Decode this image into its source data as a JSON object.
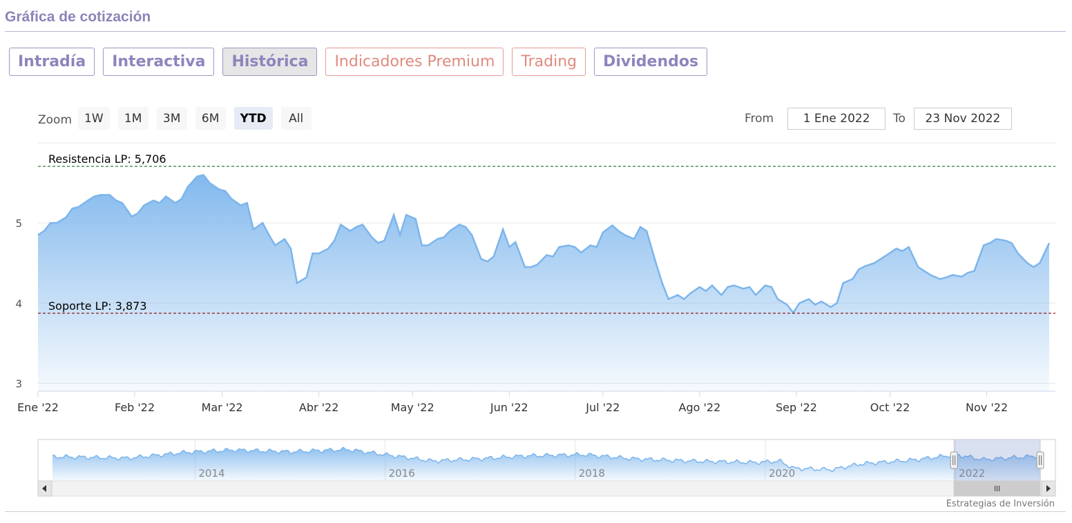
{
  "section_title": "Gráfica de cotización",
  "tabs": [
    {
      "label": "Intradía",
      "style": "purple"
    },
    {
      "label": "Interactiva",
      "style": "purple"
    },
    {
      "label": "Histórica",
      "style": "purple",
      "active": true
    },
    {
      "label": "Indicadores Premium",
      "style": "salmon"
    },
    {
      "label": "Trading",
      "style": "salmon"
    },
    {
      "label": "Dividendos",
      "style": "purple"
    }
  ],
  "zoom": {
    "label": "Zoom",
    "buttons": [
      "1W",
      "1M",
      "3M",
      "6M",
      "YTD",
      "All"
    ],
    "selected": "YTD"
  },
  "range": {
    "from_label": "From",
    "from_value": "1 Ene 2022",
    "to_label": "To",
    "to_value": "23 Nov 2022"
  },
  "credit": "Estrategias de Inversión",
  "colors": {
    "series_line": "#7cb5ec",
    "resistance": "#2e7d32",
    "support": "#8b1a1a",
    "tab_purple": "#8e85bd",
    "tab_salmon": "#e08a7e"
  },
  "chart_data": {
    "type": "area",
    "title": "",
    "xlabel": "",
    "ylabel": "",
    "x_range": [
      "2022-01-01",
      "2022-11-23"
    ],
    "ylim": [
      2.9,
      6.0
    ],
    "y_ticks": [
      3,
      4,
      5
    ],
    "x_ticks": [
      {
        "date": "2022-01-01",
        "label": "Ene '22"
      },
      {
        "date": "2022-02-01",
        "label": "Feb '22"
      },
      {
        "date": "2022-03-01",
        "label": "Mar '22"
      },
      {
        "date": "2022-04-01",
        "label": "Abr '22"
      },
      {
        "date": "2022-05-01",
        "label": "May '22"
      },
      {
        "date": "2022-06-01",
        "label": "Jun '22"
      },
      {
        "date": "2022-07-01",
        "label": "Jul '22"
      },
      {
        "date": "2022-08-01",
        "label": "Ago '22"
      },
      {
        "date": "2022-09-01",
        "label": "Sep '22"
      },
      {
        "date": "2022-10-01",
        "label": "Oct '22"
      },
      {
        "date": "2022-11-01",
        "label": "Nov '22"
      }
    ],
    "grid": true,
    "legend": "none",
    "reference_lines": [
      {
        "label": "Resistencia LP: 5,706",
        "value": 5.706,
        "style": "dashed",
        "color": "#2e7d32"
      },
      {
        "label": "Soporte LP: 3,873",
        "value": 3.873,
        "style": "dashed",
        "color": "#8b1a1a"
      }
    ],
    "series": [
      {
        "points": [
          [
            "2022-01-01",
            4.85
          ],
          [
            "2022-01-03",
            4.9
          ],
          [
            "2022-01-05",
            5.0
          ],
          [
            "2022-01-07",
            5.0
          ],
          [
            "2022-01-10",
            5.07
          ],
          [
            "2022-01-12",
            5.18
          ],
          [
            "2022-01-14",
            5.2
          ],
          [
            "2022-01-17",
            5.28
          ],
          [
            "2022-01-19",
            5.33
          ],
          [
            "2022-01-21",
            5.35
          ],
          [
            "2022-01-24",
            5.35
          ],
          [
            "2022-01-26",
            5.28
          ],
          [
            "2022-01-28",
            5.25
          ],
          [
            "2022-01-31",
            5.08
          ],
          [
            "2022-02-02",
            5.12
          ],
          [
            "2022-02-04",
            5.22
          ],
          [
            "2022-02-07",
            5.28
          ],
          [
            "2022-02-09",
            5.25
          ],
          [
            "2022-02-11",
            5.33
          ],
          [
            "2022-02-14",
            5.25
          ],
          [
            "2022-02-16",
            5.3
          ],
          [
            "2022-02-18",
            5.45
          ],
          [
            "2022-02-21",
            5.58
          ],
          [
            "2022-02-23",
            5.6
          ],
          [
            "2022-02-25",
            5.5
          ],
          [
            "2022-02-28",
            5.42
          ],
          [
            "2022-03-02",
            5.4
          ],
          [
            "2022-03-04",
            5.3
          ],
          [
            "2022-03-07",
            5.22
          ],
          [
            "2022-03-09",
            5.25
          ],
          [
            "2022-03-11",
            4.92
          ],
          [
            "2022-03-14",
            5.0
          ],
          [
            "2022-03-16",
            4.85
          ],
          [
            "2022-03-18",
            4.72
          ],
          [
            "2022-03-21",
            4.8
          ],
          [
            "2022-03-23",
            4.68
          ],
          [
            "2022-03-25",
            4.25
          ],
          [
            "2022-03-28",
            4.32
          ],
          [
            "2022-03-30",
            4.62
          ],
          [
            "2022-04-01",
            4.62
          ],
          [
            "2022-04-04",
            4.68
          ],
          [
            "2022-04-06",
            4.78
          ],
          [
            "2022-04-08",
            4.98
          ],
          [
            "2022-04-11",
            4.9
          ],
          [
            "2022-04-13",
            4.95
          ],
          [
            "2022-04-15",
            4.98
          ],
          [
            "2022-04-18",
            4.82
          ],
          [
            "2022-04-20",
            4.75
          ],
          [
            "2022-04-22",
            4.78
          ],
          [
            "2022-04-25",
            5.1
          ],
          [
            "2022-04-27",
            4.85
          ],
          [
            "2022-04-29",
            5.1
          ],
          [
            "2022-05-02",
            5.05
          ],
          [
            "2022-05-04",
            4.72
          ],
          [
            "2022-05-06",
            4.72
          ],
          [
            "2022-05-09",
            4.8
          ],
          [
            "2022-05-11",
            4.82
          ],
          [
            "2022-05-13",
            4.9
          ],
          [
            "2022-05-16",
            4.98
          ],
          [
            "2022-05-18",
            4.95
          ],
          [
            "2022-05-20",
            4.85
          ],
          [
            "2022-05-23",
            4.55
          ],
          [
            "2022-05-25",
            4.52
          ],
          [
            "2022-05-27",
            4.58
          ],
          [
            "2022-05-30",
            4.92
          ],
          [
            "2022-06-01",
            4.7
          ],
          [
            "2022-06-03",
            4.76
          ],
          [
            "2022-06-06",
            4.45
          ],
          [
            "2022-06-08",
            4.45
          ],
          [
            "2022-06-10",
            4.48
          ],
          [
            "2022-06-13",
            4.6
          ],
          [
            "2022-06-15",
            4.58
          ],
          [
            "2022-06-17",
            4.7
          ],
          [
            "2022-06-20",
            4.72
          ],
          [
            "2022-06-22",
            4.7
          ],
          [
            "2022-06-24",
            4.63
          ],
          [
            "2022-06-27",
            4.72
          ],
          [
            "2022-06-29",
            4.7
          ],
          [
            "2022-07-01",
            4.88
          ],
          [
            "2022-07-04",
            4.97
          ],
          [
            "2022-07-06",
            4.9
          ],
          [
            "2022-07-08",
            4.85
          ],
          [
            "2022-07-11",
            4.8
          ],
          [
            "2022-07-13",
            4.95
          ],
          [
            "2022-07-15",
            4.9
          ],
          [
            "2022-07-18",
            4.5
          ],
          [
            "2022-07-20",
            4.25
          ],
          [
            "2022-07-22",
            4.05
          ],
          [
            "2022-07-25",
            4.1
          ],
          [
            "2022-07-27",
            4.05
          ],
          [
            "2022-07-29",
            4.12
          ],
          [
            "2022-08-01",
            4.2
          ],
          [
            "2022-08-03",
            4.15
          ],
          [
            "2022-08-05",
            4.22
          ],
          [
            "2022-08-08",
            4.1
          ],
          [
            "2022-08-10",
            4.2
          ],
          [
            "2022-08-12",
            4.22
          ],
          [
            "2022-08-15",
            4.18
          ],
          [
            "2022-08-17",
            4.2
          ],
          [
            "2022-08-19",
            4.1
          ],
          [
            "2022-08-22",
            4.22
          ],
          [
            "2022-08-24",
            4.2
          ],
          [
            "2022-08-26",
            4.05
          ],
          [
            "2022-08-29",
            3.98
          ],
          [
            "2022-08-31",
            3.88
          ],
          [
            "2022-09-02",
            4.0
          ],
          [
            "2022-09-05",
            4.05
          ],
          [
            "2022-09-07",
            3.98
          ],
          [
            "2022-09-09",
            4.02
          ],
          [
            "2022-09-12",
            3.95
          ],
          [
            "2022-09-14",
            4.0
          ],
          [
            "2022-09-16",
            4.25
          ],
          [
            "2022-09-19",
            4.3
          ],
          [
            "2022-09-21",
            4.42
          ],
          [
            "2022-09-23",
            4.46
          ],
          [
            "2022-09-26",
            4.5
          ],
          [
            "2022-09-28",
            4.55
          ],
          [
            "2022-09-30",
            4.6
          ],
          [
            "2022-10-03",
            4.68
          ],
          [
            "2022-10-05",
            4.65
          ],
          [
            "2022-10-07",
            4.7
          ],
          [
            "2022-10-10",
            4.45
          ],
          [
            "2022-10-12",
            4.4
          ],
          [
            "2022-10-14",
            4.35
          ],
          [
            "2022-10-17",
            4.3
          ],
          [
            "2022-10-19",
            4.32
          ],
          [
            "2022-10-21",
            4.35
          ],
          [
            "2022-10-24",
            4.33
          ],
          [
            "2022-10-26",
            4.38
          ],
          [
            "2022-10-28",
            4.4
          ],
          [
            "2022-10-31",
            4.72
          ],
          [
            "2022-11-02",
            4.75
          ],
          [
            "2022-11-04",
            4.8
          ],
          [
            "2022-11-07",
            4.78
          ],
          [
            "2022-11-09",
            4.75
          ],
          [
            "2022-11-11",
            4.62
          ],
          [
            "2022-11-14",
            4.5
          ],
          [
            "2022-11-16",
            4.45
          ],
          [
            "2022-11-18",
            4.5
          ],
          [
            "2022-11-21",
            4.75
          ]
        ]
      }
    ],
    "navigator": {
      "tick_labels": [
        "2014",
        "2016",
        "2018",
        "2020",
        "2022"
      ],
      "start_year": 2012.5,
      "end_year": 2022.9,
      "selection": [
        "2022-01-01",
        "2022-11-23"
      ]
    }
  }
}
